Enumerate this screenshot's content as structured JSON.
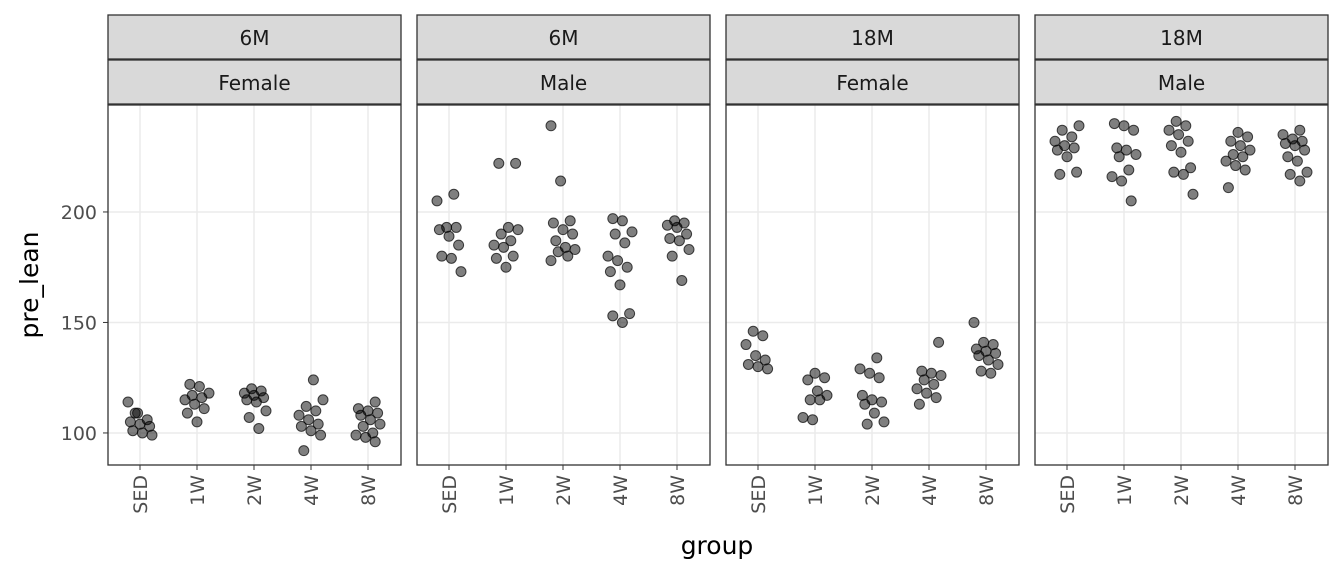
{
  "chart_data": {
    "type": "scatter",
    "x_label": "group",
    "y_label": "pre_lean",
    "ylim": [
      85.5,
      248.4
    ],
    "yticks": [
      100,
      150,
      200
    ],
    "grid": true,
    "color": "#000000",
    "alpha": 0.5,
    "categories": [
      "SED",
      "1W",
      "2W",
      "4W",
      "8W"
    ],
    "panels": [
      {
        "strips": [
          "6M",
          "Female"
        ],
        "groups": [
          [
            114,
            109,
            106,
            105,
            104,
            103,
            101,
            100,
            99,
            109
          ],
          [
            122,
            121,
            118,
            117,
            116,
            115,
            113,
            111,
            109,
            105
          ],
          [
            120,
            119,
            118,
            117,
            116,
            115,
            114,
            110,
            107,
            102
          ],
          [
            124,
            115,
            112,
            110,
            108,
            106,
            104,
            103,
            101,
            99,
            92
          ],
          [
            114,
            111,
            110,
            109,
            108,
            106,
            104,
            103,
            100,
            99,
            98,
            96
          ]
        ]
      },
      {
        "strips": [
          "6M",
          "Male"
        ],
        "groups": [
          [
            208,
            205,
            193,
            193,
            192,
            189,
            185,
            180,
            179,
            173
          ],
          [
            222,
            222,
            193,
            192,
            190,
            187,
            185,
            184,
            180,
            179,
            175
          ],
          [
            239,
            214,
            196,
            195,
            192,
            190,
            187,
            184,
            183,
            182,
            180,
            178
          ],
          [
            197,
            196,
            191,
            190,
            186,
            180,
            178,
            175,
            173,
            167,
            154,
            153,
            150
          ],
          [
            196,
            195,
            194,
            193,
            190,
            188,
            187,
            183,
            180,
            169
          ]
        ]
      },
      {
        "strips": [
          "18M",
          "Female"
        ],
        "groups": [
          [
            146,
            144,
            140,
            135,
            133,
            131,
            130,
            129
          ],
          [
            127,
            125,
            124,
            119,
            117,
            115,
            115,
            107,
            106
          ],
          [
            134,
            129,
            127,
            125,
            117,
            115,
            114,
            113,
            109,
            105,
            104
          ],
          [
            141,
            128,
            127,
            126,
            124,
            122,
            120,
            118,
            116,
            113
          ],
          [
            150,
            141,
            140,
            138,
            137,
            136,
            135,
            133,
            131,
            128,
            127
          ]
        ]
      },
      {
        "strips": [
          "18M",
          "Male"
        ],
        "groups": [
          [
            239,
            237,
            234,
            232,
            230,
            229,
            228,
            225,
            218,
            217
          ],
          [
            240,
            239,
            237,
            229,
            228,
            226,
            225,
            219,
            216,
            214,
            205
          ],
          [
            241,
            239,
            237,
            235,
            232,
            230,
            227,
            220,
            218,
            217,
            208
          ],
          [
            236,
            234,
            232,
            230,
            228,
            226,
            225,
            223,
            221,
            219,
            211
          ],
          [
            237,
            235,
            233,
            232,
            231,
            230,
            228,
            225,
            223,
            218,
            217,
            214
          ]
        ]
      }
    ]
  }
}
